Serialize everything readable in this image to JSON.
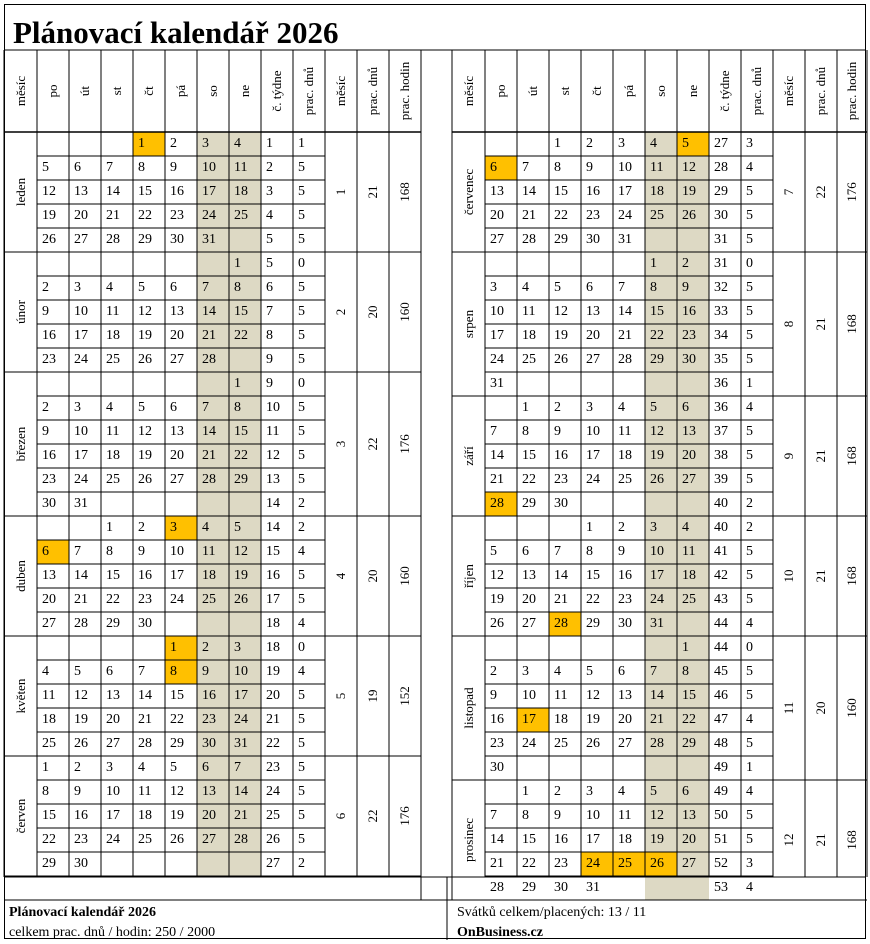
{
  "title": "Plánovací kalendář 2026",
  "headers": {
    "month": "měsíc",
    "days": [
      "po",
      "út",
      "st",
      "čt",
      "pá",
      "so",
      "ne"
    ],
    "week_no": "č. týdne",
    "work_days": "prac. dnů",
    "month_no": "měsíc",
    "month_work_days": "prac. dnů",
    "month_work_hours": "prac. hodin"
  },
  "colors": {
    "weekend": "#ddd9c4",
    "holiday": "#ffc000"
  },
  "months": [
    {
      "name": "leden",
      "num": "1",
      "days": "21",
      "hours": "168",
      "weeks": [
        {
          "d": [
            "",
            "",
            "",
            "1",
            "2",
            "3",
            "4"
          ],
          "h": [
            3
          ],
          "w": "1",
          "pd": "1"
        },
        {
          "d": [
            "5",
            "6",
            "7",
            "8",
            "9",
            "10",
            "11"
          ],
          "h": [],
          "w": "2",
          "pd": "5"
        },
        {
          "d": [
            "12",
            "13",
            "14",
            "15",
            "16",
            "17",
            "18"
          ],
          "h": [],
          "w": "3",
          "pd": "5"
        },
        {
          "d": [
            "19",
            "20",
            "21",
            "22",
            "23",
            "24",
            "25"
          ],
          "h": [],
          "w": "4",
          "pd": "5"
        },
        {
          "d": [
            "26",
            "27",
            "28",
            "29",
            "30",
            "31",
            ""
          ],
          "h": [],
          "w": "5",
          "pd": "5"
        }
      ]
    },
    {
      "name": "únor",
      "num": "2",
      "days": "20",
      "hours": "160",
      "weeks": [
        {
          "d": [
            "",
            "",
            "",
            "",
            "",
            "",
            "1"
          ],
          "h": [],
          "w": "5",
          "pd": "0"
        },
        {
          "d": [
            "2",
            "3",
            "4",
            "5",
            "6",
            "7",
            "8"
          ],
          "h": [],
          "w": "6",
          "pd": "5"
        },
        {
          "d": [
            "9",
            "10",
            "11",
            "12",
            "13",
            "14",
            "15"
          ],
          "h": [],
          "w": "7",
          "pd": "5"
        },
        {
          "d": [
            "16",
            "17",
            "18",
            "19",
            "20",
            "21",
            "22"
          ],
          "h": [],
          "w": "8",
          "pd": "5"
        },
        {
          "d": [
            "23",
            "24",
            "25",
            "26",
            "27",
            "28",
            ""
          ],
          "h": [],
          "w": "9",
          "pd": "5"
        }
      ]
    },
    {
      "name": "březen",
      "num": "3",
      "days": "22",
      "hours": "176",
      "weeks": [
        {
          "d": [
            "",
            "",
            "",
            "",
            "",
            "",
            "1"
          ],
          "h": [],
          "w": "9",
          "pd": "0"
        },
        {
          "d": [
            "2",
            "3",
            "4",
            "5",
            "6",
            "7",
            "8"
          ],
          "h": [],
          "w": "10",
          "pd": "5"
        },
        {
          "d": [
            "9",
            "10",
            "11",
            "12",
            "13",
            "14",
            "15"
          ],
          "h": [],
          "w": "11",
          "pd": "5"
        },
        {
          "d": [
            "16",
            "17",
            "18",
            "19",
            "20",
            "21",
            "22"
          ],
          "h": [],
          "w": "12",
          "pd": "5"
        },
        {
          "d": [
            "23",
            "24",
            "25",
            "26",
            "27",
            "28",
            "29"
          ],
          "h": [],
          "w": "13",
          "pd": "5"
        },
        {
          "d": [
            "30",
            "31",
            "",
            "",
            "",
            "",
            ""
          ],
          "h": [],
          "w": "14",
          "pd": "2"
        }
      ]
    },
    {
      "name": "duben",
      "num": "4",
      "days": "20",
      "hours": "160",
      "weeks": [
        {
          "d": [
            "",
            "",
            "1",
            "2",
            "3",
            "4",
            "5"
          ],
          "h": [
            4
          ],
          "w": "14",
          "pd": "2"
        },
        {
          "d": [
            "6",
            "7",
            "8",
            "9",
            "10",
            "11",
            "12"
          ],
          "h": [
            0
          ],
          "w": "15",
          "pd": "4"
        },
        {
          "d": [
            "13",
            "14",
            "15",
            "16",
            "17",
            "18",
            "19"
          ],
          "h": [],
          "w": "16",
          "pd": "5"
        },
        {
          "d": [
            "20",
            "21",
            "22",
            "23",
            "24",
            "25",
            "26"
          ],
          "h": [],
          "w": "17",
          "pd": "5"
        },
        {
          "d": [
            "27",
            "28",
            "29",
            "30",
            "",
            "",
            ""
          ],
          "h": [],
          "w": "18",
          "pd": "4"
        }
      ]
    },
    {
      "name": "květen",
      "num": "5",
      "days": "19",
      "hours": "152",
      "weeks": [
        {
          "d": [
            "",
            "",
            "",
            "",
            "1",
            "2",
            "3"
          ],
          "h": [
            4
          ],
          "w": "18",
          "pd": "0"
        },
        {
          "d": [
            "4",
            "5",
            "6",
            "7",
            "8",
            "9",
            "10"
          ],
          "h": [
            4
          ],
          "w": "19",
          "pd": "4"
        },
        {
          "d": [
            "11",
            "12",
            "13",
            "14",
            "15",
            "16",
            "17"
          ],
          "h": [],
          "w": "20",
          "pd": "5"
        },
        {
          "d": [
            "18",
            "19",
            "20",
            "21",
            "22",
            "23",
            "24"
          ],
          "h": [],
          "w": "21",
          "pd": "5"
        },
        {
          "d": [
            "25",
            "26",
            "27",
            "28",
            "29",
            "30",
            "31"
          ],
          "h": [],
          "w": "22",
          "pd": "5"
        }
      ]
    },
    {
      "name": "červen",
      "num": "6",
      "days": "22",
      "hours": "176",
      "weeks": [
        {
          "d": [
            "1",
            "2",
            "3",
            "4",
            "5",
            "6",
            "7"
          ],
          "h": [],
          "w": "23",
          "pd": "5"
        },
        {
          "d": [
            "8",
            "9",
            "10",
            "11",
            "12",
            "13",
            "14"
          ],
          "h": [],
          "w": "24",
          "pd": "5"
        },
        {
          "d": [
            "15",
            "16",
            "17",
            "18",
            "19",
            "20",
            "21"
          ],
          "h": [],
          "w": "25",
          "pd": "5"
        },
        {
          "d": [
            "22",
            "23",
            "24",
            "25",
            "26",
            "27",
            "28"
          ],
          "h": [],
          "w": "26",
          "pd": "5"
        },
        {
          "d": [
            "29",
            "30",
            "",
            "",
            "",
            "",
            ""
          ],
          "h": [],
          "w": "27",
          "pd": "2"
        }
      ]
    },
    {
      "name": "červenec",
      "num": "7",
      "days": "22",
      "hours": "176",
      "weeks": [
        {
          "d": [
            "",
            "",
            "1",
            "2",
            "3",
            "4",
            "5"
          ],
          "h": [
            6
          ],
          "w": "27",
          "pd": "3"
        },
        {
          "d": [
            "6",
            "7",
            "8",
            "9",
            "10",
            "11",
            "12"
          ],
          "h": [
            0
          ],
          "w": "28",
          "pd": "4"
        },
        {
          "d": [
            "13",
            "14",
            "15",
            "16",
            "17",
            "18",
            "19"
          ],
          "h": [],
          "w": "29",
          "pd": "5"
        },
        {
          "d": [
            "20",
            "21",
            "22",
            "23",
            "24",
            "25",
            "26"
          ],
          "h": [],
          "w": "30",
          "pd": "5"
        },
        {
          "d": [
            "27",
            "28",
            "29",
            "30",
            "31",
            "",
            ""
          ],
          "h": [],
          "w": "31",
          "pd": "5"
        }
      ]
    },
    {
      "name": "srpen",
      "num": "8",
      "days": "21",
      "hours": "168",
      "weeks": [
        {
          "d": [
            "",
            "",
            "",
            "",
            "",
            "1",
            "2"
          ],
          "h": [],
          "w": "31",
          "pd": "0"
        },
        {
          "d": [
            "3",
            "4",
            "5",
            "6",
            "7",
            "8",
            "9"
          ],
          "h": [],
          "w": "32",
          "pd": "5"
        },
        {
          "d": [
            "10",
            "11",
            "12",
            "13",
            "14",
            "15",
            "16"
          ],
          "h": [],
          "w": "33",
          "pd": "5"
        },
        {
          "d": [
            "17",
            "18",
            "19",
            "20",
            "21",
            "22",
            "23"
          ],
          "h": [],
          "w": "34",
          "pd": "5"
        },
        {
          "d": [
            "24",
            "25",
            "26",
            "27",
            "28",
            "29",
            "30"
          ],
          "h": [],
          "w": "35",
          "pd": "5"
        },
        {
          "d": [
            "31",
            "",
            "",
            "",
            "",
            "",
            ""
          ],
          "h": [],
          "w": "36",
          "pd": "1"
        }
      ]
    },
    {
      "name": "září",
      "num": "9",
      "days": "21",
      "hours": "168",
      "weeks": [
        {
          "d": [
            "",
            "1",
            "2",
            "3",
            "4",
            "5",
            "6"
          ],
          "h": [],
          "w": "36",
          "pd": "4"
        },
        {
          "d": [
            "7",
            "8",
            "9",
            "10",
            "11",
            "12",
            "13"
          ],
          "h": [],
          "w": "37",
          "pd": "5"
        },
        {
          "d": [
            "14",
            "15",
            "16",
            "17",
            "18",
            "19",
            "20"
          ],
          "h": [],
          "w": "38",
          "pd": "5"
        },
        {
          "d": [
            "21",
            "22",
            "23",
            "24",
            "25",
            "26",
            "27"
          ],
          "h": [],
          "w": "39",
          "pd": "5"
        },
        {
          "d": [
            "28",
            "29",
            "30",
            "",
            "",
            "",
            ""
          ],
          "h": [
            0
          ],
          "w": "40",
          "pd": "2"
        }
      ]
    },
    {
      "name": "říjen",
      "num": "10",
      "days": "21",
      "hours": "168",
      "weeks": [
        {
          "d": [
            "",
            "",
            "",
            "1",
            "2",
            "3",
            "4"
          ],
          "h": [],
          "w": "40",
          "pd": "2"
        },
        {
          "d": [
            "5",
            "6",
            "7",
            "8",
            "9",
            "10",
            "11"
          ],
          "h": [],
          "w": "41",
          "pd": "5"
        },
        {
          "d": [
            "12",
            "13",
            "14",
            "15",
            "16",
            "17",
            "18"
          ],
          "h": [],
          "w": "42",
          "pd": "5"
        },
        {
          "d": [
            "19",
            "20",
            "21",
            "22",
            "23",
            "24",
            "25"
          ],
          "h": [],
          "w": "43",
          "pd": "5"
        },
        {
          "d": [
            "26",
            "27",
            "28",
            "29",
            "30",
            "31",
            ""
          ],
          "h": [
            2
          ],
          "w": "44",
          "pd": "4"
        }
      ]
    },
    {
      "name": "listopad",
      "num": "11",
      "days": "20",
      "hours": "160",
      "weeks": [
        {
          "d": [
            "",
            "",
            "",
            "",
            "",
            "",
            "1"
          ],
          "h": [],
          "w": "44",
          "pd": "0"
        },
        {
          "d": [
            "2",
            "3",
            "4",
            "5",
            "6",
            "7",
            "8"
          ],
          "h": [],
          "w": "45",
          "pd": "5"
        },
        {
          "d": [
            "9",
            "10",
            "11",
            "12",
            "13",
            "14",
            "15"
          ],
          "h": [],
          "w": "46",
          "pd": "5"
        },
        {
          "d": [
            "16",
            "17",
            "18",
            "19",
            "20",
            "21",
            "22"
          ],
          "h": [
            1
          ],
          "w": "47",
          "pd": "4"
        },
        {
          "d": [
            "23",
            "24",
            "25",
            "26",
            "27",
            "28",
            "29"
          ],
          "h": [],
          "w": "48",
          "pd": "5"
        },
        {
          "d": [
            "30",
            "",
            "",
            "",
            "",
            "",
            ""
          ],
          "h": [],
          "w": "49",
          "pd": "1"
        }
      ]
    },
    {
      "name": "prosinec",
      "num": "12",
      "days": "21",
      "hours": "168",
      "weeks": [
        {
          "d": [
            "",
            "1",
            "2",
            "3",
            "4",
            "5",
            "6"
          ],
          "h": [],
          "w": "49",
          "pd": "4"
        },
        {
          "d": [
            "7",
            "8",
            "9",
            "10",
            "11",
            "12",
            "13"
          ],
          "h": [],
          "w": "50",
          "pd": "5"
        },
        {
          "d": [
            "14",
            "15",
            "16",
            "17",
            "18",
            "19",
            "20"
          ],
          "h": [],
          "w": "51",
          "pd": "5"
        },
        {
          "d": [
            "21",
            "22",
            "23",
            "24",
            "25",
            "26",
            "27"
          ],
          "h": [
            3,
            4,
            5
          ],
          "w": "52",
          "pd": "3"
        },
        {
          "d": [
            "28",
            "29",
            "30",
            "31",
            "",
            "",
            ""
          ],
          "h": [],
          "w": "53",
          "pd": "4"
        }
      ]
    }
  ],
  "footer": {
    "left_title": "Plánovací kalendář 2026",
    "left_summary": "celkem prac. dnů / hodin: 250 / 2000",
    "right_summary": "Svátků celkem/placených: 13 / 11",
    "brand": "OnBusiness.cz"
  }
}
